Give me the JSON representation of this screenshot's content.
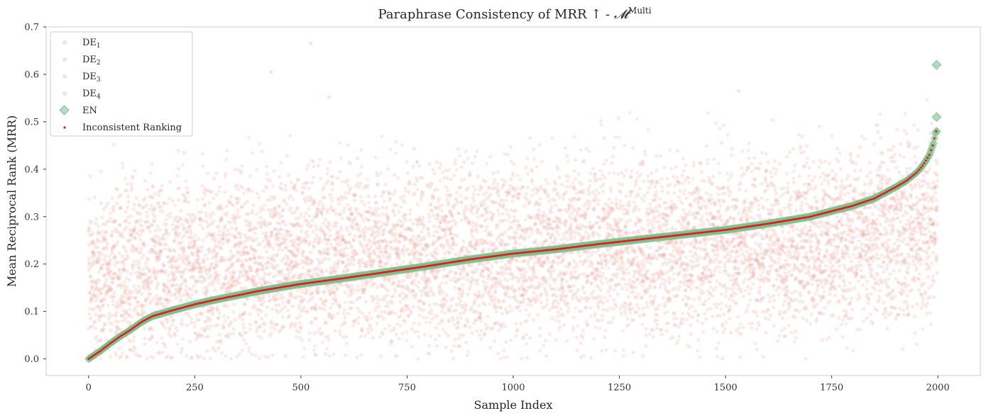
{
  "chart_data": {
    "type": "scatter",
    "title_parts": {
      "prefix": "Paraphrase Consistency of MRR ↑  - ",
      "model_symbol": "𝓜",
      "model_superscript": "Multi"
    },
    "xlabel": "Sample Index",
    "ylabel": "Mean Reciprocal Rank (MRR)",
    "xlim": [
      -100,
      2100
    ],
    "ylim": [
      -0.035,
      0.7
    ],
    "x_ticks": [
      0,
      250,
      500,
      750,
      1000,
      1250,
      1500,
      1750,
      2000
    ],
    "y_ticks": [
      0.0,
      0.1,
      0.2,
      0.3,
      0.4,
      0.5,
      0.6,
      0.7
    ],
    "grid": false,
    "legend_position": "top-left",
    "n_samples": 2000,
    "colors": {
      "de": "#e8a49c",
      "en": "#7fbf8e",
      "inconsistent": "#e31a1c",
      "frame": "#cccccc"
    },
    "series": [
      {
        "name": "DE",
        "subscript": "1",
        "marker": "circle",
        "alpha": 0.25,
        "note": "scattered around EN curve, mostly within 0.0–0.5"
      },
      {
        "name": "DE",
        "subscript": "2",
        "marker": "circle",
        "alpha": 0.25
      },
      {
        "name": "DE",
        "subscript": "3",
        "marker": "circle",
        "alpha": 0.25
      },
      {
        "name": "DE",
        "subscript": "4",
        "marker": "circle",
        "alpha": 0.25
      },
      {
        "name": "EN",
        "marker": "diamond",
        "sorted_curve": {
          "x": [
            0,
            25,
            50,
            75,
            100,
            125,
            150,
            200,
            250,
            300,
            350,
            400,
            500,
            600,
            700,
            800,
            900,
            1000,
            1100,
            1200,
            1300,
            1400,
            1500,
            1600,
            1700,
            1800,
            1850,
            1900,
            1925,
            1950,
            1960,
            1970,
            1980,
            1990,
            1995
          ],
          "y": [
            0.0,
            0.015,
            0.032,
            0.048,
            0.062,
            0.078,
            0.09,
            0.103,
            0.115,
            0.125,
            0.134,
            0.143,
            0.158,
            0.17,
            0.183,
            0.196,
            0.21,
            0.222,
            0.231,
            0.242,
            0.252,
            0.262,
            0.272,
            0.285,
            0.3,
            0.323,
            0.338,
            0.362,
            0.375,
            0.393,
            0.403,
            0.415,
            0.43,
            0.455,
            0.48
          ]
        },
        "outliers": [
          {
            "x": 1997,
            "y": 0.62
          },
          {
            "x": 1997,
            "y": 0.51
          }
        ]
      },
      {
        "name": "Inconsistent Ranking",
        "marker": "point",
        "note": "red dots overlaid on EN curve"
      }
    ]
  }
}
